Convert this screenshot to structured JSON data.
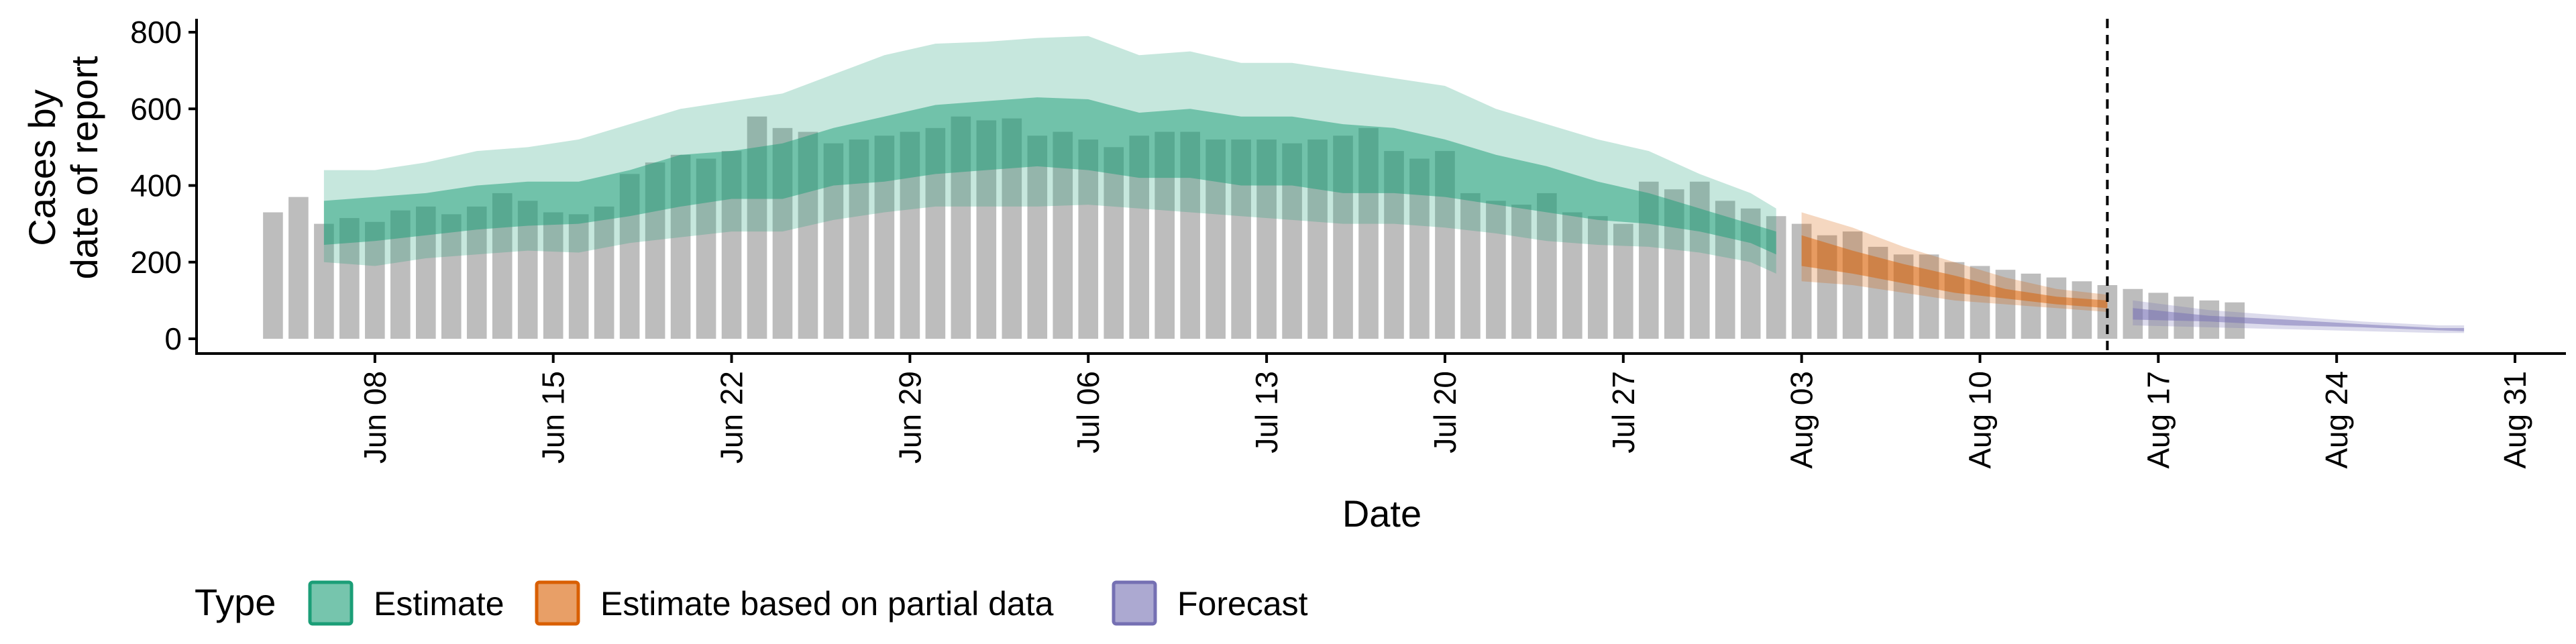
{
  "chart_data": {
    "type": "area",
    "xlabel": "Date",
    "ylabel_lines": [
      "Cases by",
      "date of report"
    ],
    "ylim": [
      0,
      850
    ],
    "yticks": [
      0,
      200,
      400,
      600,
      800
    ],
    "x_start": "2020-06-04",
    "x_end": "2020-08-31",
    "x_range": [
      "2020-06-01",
      "2020-09-02"
    ],
    "xticks": [
      {
        "date": "2020-06-08",
        "label": "Jun 08"
      },
      {
        "date": "2020-06-15",
        "label": "Jun 15"
      },
      {
        "date": "2020-06-22",
        "label": "Jun 22"
      },
      {
        "date": "2020-06-29",
        "label": "Jun 29"
      },
      {
        "date": "2020-07-06",
        "label": "Jul 06"
      },
      {
        "date": "2020-07-13",
        "label": "Jul 13"
      },
      {
        "date": "2020-07-20",
        "label": "Jul 20"
      },
      {
        "date": "2020-07-27",
        "label": "Jul 27"
      },
      {
        "date": "2020-08-03",
        "label": "Aug 03"
      },
      {
        "date": "2020-08-10",
        "label": "Aug 10"
      },
      {
        "date": "2020-08-17",
        "label": "Aug 17"
      },
      {
        "date": "2020-08-24",
        "label": "Aug 24"
      },
      {
        "date": "2020-08-31",
        "label": "Aug 31"
      }
    ],
    "vline_date": "2020-08-15",
    "reported_cases": [
      330,
      370,
      300,
      315,
      305,
      335,
      345,
      325,
      345,
      380,
      360,
      330,
      325,
      345,
      430,
      460,
      480,
      470,
      490,
      580,
      550,
      540,
      510,
      520,
      530,
      540,
      550,
      580,
      570,
      575,
      530,
      540,
      520,
      500,
      530,
      540,
      540,
      520,
      520,
      520,
      510,
      520,
      530,
      550,
      490,
      470,
      490,
      380,
      360,
      350,
      380,
      330,
      320,
      300,
      410,
      390,
      410,
      360,
      340,
      320,
      300,
      270,
      280,
      240,
      220,
      220,
      200,
      190,
      180,
      170,
      160,
      150,
      140,
      130,
      120,
      110,
      100,
      95
    ],
    "bands": [
      {
        "type": "Estimate",
        "dates": [
          "2020-06-06",
          "2020-06-08",
          "2020-06-10",
          "2020-06-12",
          "2020-06-14",
          "2020-06-16",
          "2020-06-18",
          "2020-06-20",
          "2020-06-22",
          "2020-06-24",
          "2020-06-26",
          "2020-06-28",
          "2020-06-30",
          "2020-07-02",
          "2020-07-04",
          "2020-07-06",
          "2020-07-08",
          "2020-07-10",
          "2020-07-12",
          "2020-07-14",
          "2020-07-16",
          "2020-07-18",
          "2020-07-20",
          "2020-07-22",
          "2020-07-24",
          "2020-07-26",
          "2020-07-28",
          "2020-07-30",
          "2020-08-01",
          "2020-08-02"
        ],
        "lower_90": [
          200,
          190,
          210,
          220,
          230,
          225,
          250,
          265,
          280,
          280,
          310,
          330,
          345,
          345,
          345,
          350,
          340,
          330,
          320,
          310,
          300,
          300,
          290,
          275,
          255,
          245,
          240,
          225,
          200,
          170
        ],
        "upper_90": [
          440,
          440,
          460,
          490,
          500,
          520,
          560,
          600,
          620,
          640,
          690,
          740,
          770,
          775,
          785,
          790,
          740,
          750,
          720,
          720,
          700,
          680,
          660,
          600,
          560,
          520,
          490,
          430,
          380,
          340
        ],
        "lower_50": [
          245,
          255,
          270,
          285,
          295,
          300,
          320,
          345,
          365,
          365,
          400,
          410,
          430,
          440,
          450,
          440,
          420,
          420,
          400,
          400,
          380,
          380,
          370,
          350,
          330,
          310,
          300,
          280,
          250,
          220
        ],
        "upper_50": [
          360,
          370,
          380,
          400,
          410,
          410,
          440,
          480,
          490,
          510,
          550,
          580,
          610,
          620,
          630,
          625,
          590,
          600,
          580,
          580,
          560,
          550,
          520,
          480,
          450,
          410,
          380,
          340,
          300,
          280
        ]
      },
      {
        "type": "Estimate based on partial data",
        "dates": [
          "2020-08-03",
          "2020-08-05",
          "2020-08-07",
          "2020-08-09",
          "2020-08-11",
          "2020-08-13",
          "2020-08-15"
        ],
        "lower_90": [
          150,
          140,
          120,
          100,
          90,
          80,
          70
        ],
        "upper_90": [
          330,
          290,
          240,
          200,
          160,
          130,
          115
        ],
        "lower_50": [
          190,
          170,
          145,
          120,
          105,
          90,
          80
        ],
        "upper_50": [
          270,
          230,
          195,
          165,
          130,
          110,
          100
        ]
      },
      {
        "type": "Forecast",
        "dates": [
          "2020-08-16",
          "2020-08-19",
          "2020-08-22",
          "2020-08-25",
          "2020-08-28",
          "2020-08-29"
        ],
        "lower_90": [
          35,
          30,
          25,
          20,
          15,
          15
        ],
        "upper_90": [
          100,
          75,
          60,
          45,
          35,
          35
        ],
        "lower_50": [
          50,
          45,
          35,
          30,
          22,
          20
        ],
        "upper_50": [
          80,
          60,
          50,
          38,
          28,
          28
        ]
      }
    ],
    "legend": {
      "title": "Type",
      "position": "bottom",
      "items": [
        {
          "label": "Estimate",
          "fill": "#1b9e77",
          "border": "#1b9e77"
        },
        {
          "label": "Estimate based on partial data",
          "fill": "#d95f02",
          "border": "#d95f02"
        },
        {
          "label": "Forecast",
          "fill": "#7570b3",
          "border": "#7570b3"
        }
      ]
    },
    "colors": {
      "bars": "#bdbdbd",
      "Estimate": "#1b9e77",
      "Estimate based on partial data": "#d95f02",
      "Forecast": "#7570b3",
      "vline": "#000000"
    }
  }
}
